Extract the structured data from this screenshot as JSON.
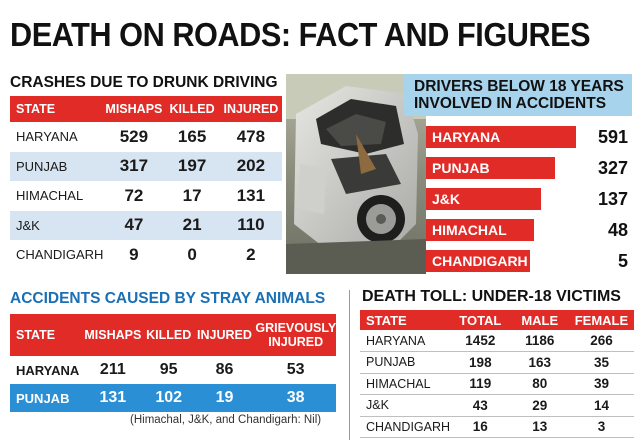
{
  "title": "DEATH ON ROADS: FACT AND FIGURES",
  "drunk_driving": {
    "title": "CRASHES DUE TO DRUNK DRIVING",
    "headers": [
      "STATE",
      "MISHAPS",
      "KILLED",
      "INJURED"
    ],
    "rows": [
      [
        "HARYANA",
        "529",
        "165",
        "478"
      ],
      [
        "PUNJAB",
        "317",
        "197",
        "202"
      ],
      [
        "HIMACHAL",
        "72",
        "17",
        "131"
      ],
      [
        "J&K",
        "47",
        "21",
        "110"
      ],
      [
        "CHANDIGARH",
        "9",
        "0",
        "2"
      ]
    ]
  },
  "photo": {
    "subject": "wrecked car"
  },
  "chart_data": {
    "type": "bar",
    "title": "DRIVERS BELOW 18 YEARS INVOLVED IN ACCIDENTS",
    "categories": [
      "HARYANA",
      "PUNJAB",
      "J&K",
      "HIMACHAL",
      "CHANDIGARH"
    ],
    "values": [
      591,
      327,
      137,
      48,
      5
    ],
    "value_labels": [
      "591",
      "327",
      "137",
      "48",
      "5"
    ],
    "orientation": "horizontal",
    "bar_color": "#e02b27"
  },
  "stray_animals": {
    "title": "ACCIDENTS CAUSED BY STRAY ANIMALS",
    "headers": [
      "STATE",
      "MISHAPS",
      "KILLED",
      "INJURED",
      "GRIEVOUSLY INJURED"
    ],
    "rows": [
      [
        "HARYANA",
        "211",
        "95",
        "86",
        "53"
      ],
      [
        "PUNJAB",
        "131",
        "102",
        "19",
        "38"
      ]
    ],
    "note": "(Himachal, J&K, and Chandigarh: Nil)"
  },
  "death_toll": {
    "title": "DEATH TOLL: UNDER-18 VICTIMS",
    "headers": [
      "STATE",
      "TOTAL",
      "MALE",
      "FEMALE"
    ],
    "rows": [
      [
        "HARYANA",
        "1452",
        "1186",
        "266"
      ],
      [
        "PUNJAB",
        "198",
        "163",
        "35"
      ],
      [
        "HIMACHAL",
        "119",
        "80",
        "39"
      ],
      [
        "J&K",
        "43",
        "29",
        "14"
      ],
      [
        "CHANDIGARH",
        "16",
        "13",
        "3"
      ]
    ]
  },
  "colors": {
    "accent_red": "#e02b27",
    "alt_row_blue": "#d7e4f2",
    "highlight_blue": "#2b8fd6",
    "title_blue": "#1a6fb5",
    "header_box": "#a8d3ec"
  }
}
